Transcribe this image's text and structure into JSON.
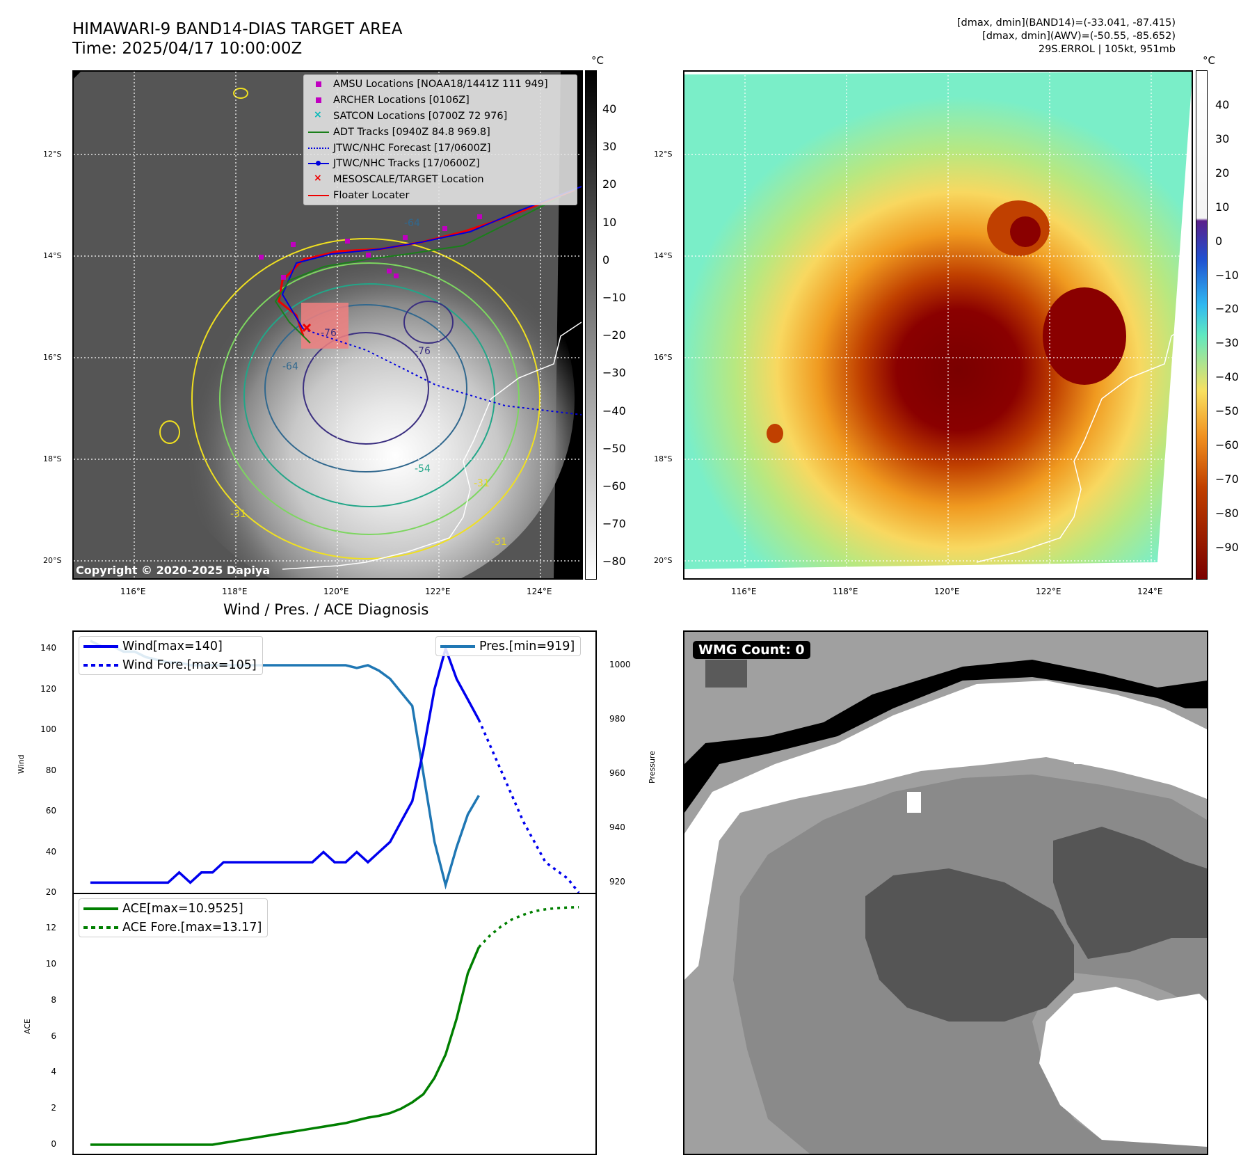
{
  "header": {
    "title_line1": "HIMAWARI-9 BAND14-DIAS TARGET AREA",
    "title_line2": "Time: 2025/04/17 10:00:00Z",
    "info_line1": "[dmax, dmin](BAND14)=(-33.041, -87.415)",
    "info_line2": "[dmax, dmin](AWV)=(-50.55, -85.652)",
    "info_line3": "29S.ERROL | 105kt, 951mb"
  },
  "map": {
    "lat_labels": [
      "12°S",
      "14°S",
      "16°S",
      "18°S",
      "20°S"
    ],
    "lon_labels": [
      "116°E",
      "118°E",
      "120°E",
      "122°E",
      "124°E"
    ],
    "copyright": "Copyright © 2020-2025 Dapiya",
    "contour_labels": [
      "-64",
      "-76",
      "-64",
      "-76",
      "-54",
      "-31",
      "-31",
      "-31"
    ],
    "legend": [
      {
        "label": "AMSU Locations [NOAA18/1441Z 111 949]",
        "symbol": "square",
        "color": "#c000c0"
      },
      {
        "label": "ARCHER Locations [0106Z]",
        "symbol": "square",
        "color": "#c000c0"
      },
      {
        "label": "SATCON Locations [0700Z 72 976]",
        "symbol": "x",
        "color": "#00b8b8"
      },
      {
        "label": "ADT Tracks [0940Z 84.8 969.8]",
        "symbol": "line",
        "color": "#1a7f1a"
      },
      {
        "label": "JTWC/NHC Forecast [17/0600Z]",
        "symbol": "dotted",
        "color": "#0000dd"
      },
      {
        "label": "JTWC/NHC Tracks [17/0600Z]",
        "symbol": "line-dot",
        "color": "#0000dd"
      },
      {
        "label": "MESOSCALE/TARGET Location",
        "symbol": "x",
        "color": "#ee0000"
      },
      {
        "label": "Floater Locater",
        "symbol": "line",
        "color": "#ee0000"
      }
    ]
  },
  "colorbar_gray": {
    "unit": "°C",
    "ticks": [
      "40",
      "30",
      "20",
      "10",
      "0",
      "−10",
      "−20",
      "−30",
      "−40",
      "−50",
      "−60",
      "−70",
      "−80"
    ]
  },
  "colorbar_color": {
    "unit": "°C",
    "ticks": [
      "40",
      "30",
      "20",
      "10",
      "0",
      "−10",
      "−20",
      "−30",
      "−40",
      "−50",
      "−60",
      "−70",
      "−80",
      "−90"
    ]
  },
  "diagnosis": {
    "title": "Wind / Pres. / ACE Diagnosis",
    "wind_ylabel": "Wind",
    "pres_ylabel": "Pressure",
    "ace_ylabel": "ACE",
    "wind_yticks": [
      "140",
      "120",
      "100",
      "80",
      "60",
      "40",
      "20"
    ],
    "pres_yticks": [
      "1000",
      "980",
      "960",
      "940",
      "920"
    ],
    "ace_yticks": [
      "12",
      "10",
      "8",
      "6",
      "4",
      "2",
      "0"
    ],
    "legend_wind": "Wind[max=140]",
    "legend_wind_fore": "Wind Fore.[max=105]",
    "legend_pres": "Pres.[min=919]",
    "legend_ace": "ACE[max=10.9525]",
    "legend_ace_fore": "ACE Fore.[max=13.17]"
  },
  "wmg": {
    "badge": "WMG Count: 0"
  },
  "chart_data": [
    {
      "type": "line",
      "title": "Wind / Pres. / ACE Diagnosis",
      "ylabel": "Wind",
      "ylim": [
        20,
        145
      ],
      "x": [
        0,
        1,
        2,
        3,
        4,
        5,
        6,
        7,
        8,
        9,
        10,
        11,
        12,
        13,
        14,
        15,
        16,
        17,
        18,
        19,
        20,
        21,
        22,
        23,
        24,
        25,
        26,
        27,
        28,
        29,
        30,
        31,
        32,
        33,
        34,
        35,
        36,
        37,
        38,
        39,
        40,
        41,
        42,
        43,
        44
      ],
      "series": [
        {
          "name": "Wind[max=140]",
          "color": "#0000ee",
          "style": "solid",
          "x": [
            0,
            1,
            2,
            3,
            4,
            5,
            6,
            7,
            8,
            9,
            10,
            11,
            12,
            13,
            14,
            15,
            16,
            17,
            18,
            19,
            20,
            21,
            22,
            23,
            24,
            25,
            26,
            27,
            28,
            29,
            30,
            31,
            32,
            33,
            34,
            35
          ],
          "values": [
            25,
            25,
            25,
            25,
            25,
            25,
            25,
            25,
            30,
            25,
            30,
            30,
            35,
            35,
            35,
            35,
            35,
            35,
            35,
            35,
            35,
            40,
            35,
            35,
            40,
            35,
            40,
            45,
            55,
            65,
            90,
            120,
            140,
            125,
            115,
            105
          ]
        },
        {
          "name": "Wind Fore.[max=105]",
          "color": "#0000ee",
          "style": "dotted",
          "x": [
            35,
            37,
            39,
            41,
            43,
            44
          ],
          "values": [
            105,
            80,
            55,
            35,
            27,
            20
          ]
        }
      ]
    },
    {
      "type": "line",
      "ylabel": "Pressure",
      "ylim": [
        915,
        1010
      ],
      "series": [
        {
          "name": "Pres.[min=919]",
          "color": "#1f77b4",
          "style": "solid",
          "x": [
            0,
            1,
            2,
            3,
            4,
            5,
            6,
            7,
            8,
            9,
            10,
            11,
            12,
            13,
            14,
            15,
            16,
            17,
            18,
            19,
            20,
            21,
            22,
            23,
            24,
            25,
            26,
            27,
            28,
            29,
            30,
            31,
            32,
            33,
            34,
            35
          ],
          "values": [
            1009,
            1007,
            1007,
            1005,
            1005,
            1003,
            1002,
            1001,
            1001,
            1000,
            1000,
            1000,
            1000,
            1000,
            1000,
            1000,
            1000,
            1000,
            1000,
            1000,
            1000,
            1000,
            1000,
            1000,
            999,
            1000,
            998,
            995,
            990,
            985,
            960,
            935,
            919,
            933,
            945,
            952
          ]
        }
      ]
    },
    {
      "type": "line",
      "ylabel": "ACE",
      "ylim": [
        -0.6,
        13.6
      ],
      "series": [
        {
          "name": "ACE[max=10.9525]",
          "color": "#007f00",
          "style": "solid",
          "x": [
            0,
            1,
            2,
            3,
            4,
            5,
            6,
            7,
            8,
            9,
            10,
            11,
            12,
            13,
            14,
            15,
            16,
            17,
            18,
            19,
            20,
            21,
            22,
            23,
            24,
            25,
            26,
            27,
            28,
            29,
            30,
            31,
            32,
            33,
            34,
            35
          ],
          "values": [
            0,
            0,
            0,
            0,
            0,
            0,
            0,
            0,
            0,
            0,
            0,
            0,
            0.1,
            0.2,
            0.3,
            0.4,
            0.5,
            0.6,
            0.7,
            0.8,
            0.9,
            1.0,
            1.1,
            1.2,
            1.35,
            1.5,
            1.6,
            1.75,
            2.0,
            2.35,
            2.8,
            3.7,
            5.0,
            7.0,
            9.5,
            10.95
          ]
        },
        {
          "name": "ACE Fore.[max=13.17]",
          "color": "#007f00",
          "style": "dotted",
          "x": [
            35,
            36,
            37,
            38,
            39,
            40,
            41,
            42,
            43,
            44
          ],
          "values": [
            10.95,
            11.6,
            12.1,
            12.5,
            12.75,
            12.95,
            13.05,
            13.12,
            13.15,
            13.17
          ]
        }
      ]
    }
  ]
}
